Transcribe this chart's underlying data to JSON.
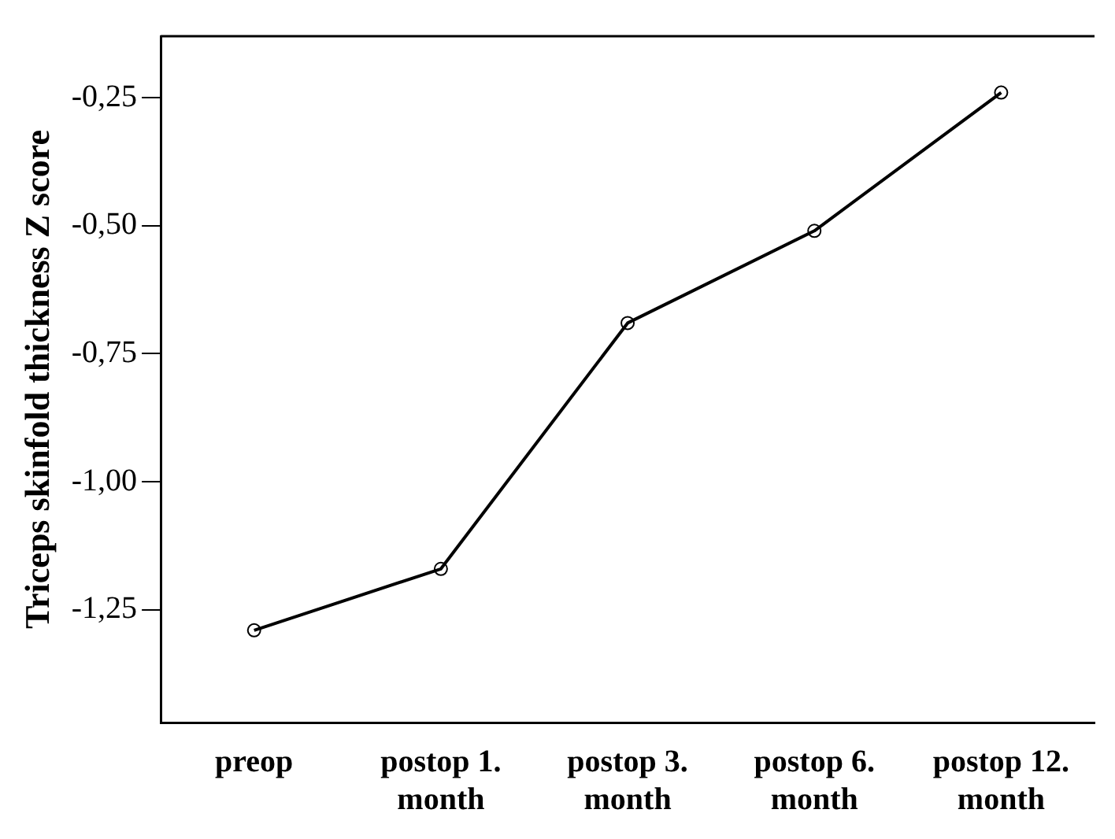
{
  "chart_data": {
    "type": "line",
    "ylabel": "Triceps skinfold thickness Z score",
    "categories": [
      "preop",
      "postop 1. month",
      "postop 3. month",
      "postop 6. month",
      "postop 12. month"
    ],
    "series": [
      {
        "color": "#000000",
        "values": [
          -1.29,
          -1.17,
          -0.69,
          -0.51,
          -0.24
        ]
      }
    ],
    "ylim": [
      -1.47,
      -0.13
    ],
    "yticks": [
      {
        "value": -1.25,
        "label": "-1,25"
      },
      {
        "value": -1.0,
        "label": "-1,00"
      },
      {
        "value": -0.75,
        "label": "-0,75"
      },
      {
        "value": -0.5,
        "label": "-0,50"
      },
      {
        "value": -0.25,
        "label": "-0,25"
      }
    ],
    "grid": false,
    "legend": false,
    "marker": "circle",
    "line_style": "solid"
  }
}
